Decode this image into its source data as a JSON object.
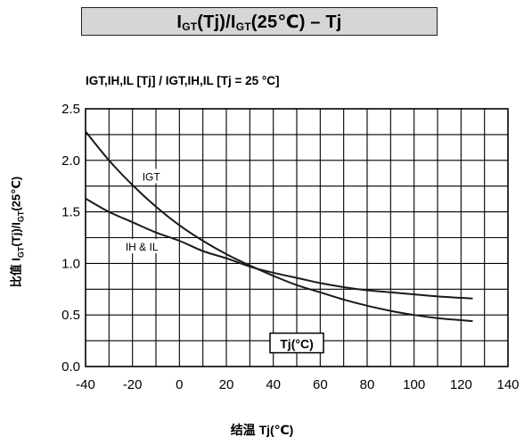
{
  "title": {
    "part1": "I",
    "sub1": "GT",
    "part2": "(Tj)/I",
    "sub2": "GT",
    "part3": "(25℃) – Tj"
  },
  "subtitle": "IGT,IH,IL [Tj] / IGT,IH,IL [Tj = 25 °C]",
  "ylabel": {
    "part1": "比值 I",
    "sub1": "GT",
    "part2": "(Tj)/I",
    "sub2": "GT",
    "part3": "(25℃)"
  },
  "xlabel": "结温 Tj(℃)",
  "chart_data": {
    "type": "line",
    "xlim": [
      -40,
      140
    ],
    "ylim": [
      0,
      2.5
    ],
    "grid": true,
    "x_ticks": [
      "-40",
      "-20",
      "0",
      "20",
      "40",
      "60",
      "80",
      "100",
      "120",
      "140"
    ],
    "y_ticks": [
      "0.0",
      "0.5",
      "1.0",
      "1.5",
      "2.0",
      "2.5"
    ],
    "axis_annotation": "Tj(°C)",
    "series": [
      {
        "name": "IGT",
        "x": [
          -40,
          -30,
          -20,
          -10,
          0,
          10,
          20,
          30,
          40,
          50,
          60,
          70,
          80,
          90,
          100,
          110,
          125
        ],
        "y": [
          2.28,
          2.0,
          1.76,
          1.55,
          1.37,
          1.22,
          1.09,
          0.98,
          0.88,
          0.79,
          0.72,
          0.65,
          0.59,
          0.54,
          0.5,
          0.47,
          0.44
        ]
      },
      {
        "name": "IH & IL",
        "x": [
          -40,
          -30,
          -20,
          -10,
          0,
          10,
          20,
          30,
          40,
          50,
          60,
          70,
          80,
          90,
          100,
          110,
          125
        ],
        "y": [
          1.63,
          1.5,
          1.4,
          1.3,
          1.22,
          1.12,
          1.05,
          0.97,
          0.91,
          0.86,
          0.81,
          0.77,
          0.74,
          0.72,
          0.7,
          0.68,
          0.66
        ]
      }
    ]
  }
}
